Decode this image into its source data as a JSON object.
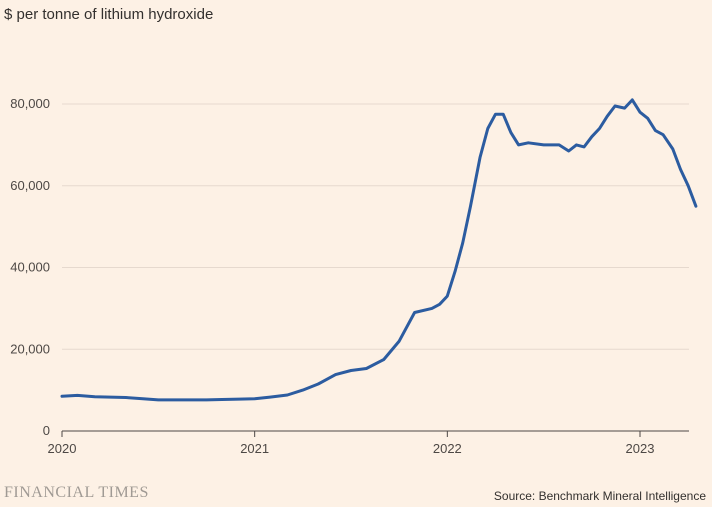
{
  "chart_data": {
    "type": "line",
    "title": "",
    "subtitle": "$ per tonne of lithium hydroxide",
    "xlabel": "",
    "ylabel": "",
    "xlim": [
      2020.0,
      2023.33
    ],
    "ylim": [
      0,
      80000
    ],
    "y_ticks": [
      0,
      20000,
      40000,
      60000,
      80000
    ],
    "y_tick_labels": [
      "0",
      "20,000",
      "40,000",
      "60,000",
      "80,000"
    ],
    "x_ticks": [
      2020,
      2021,
      2022,
      2023
    ],
    "x_tick_labels": [
      "2020",
      "2021",
      "2022",
      "2023"
    ],
    "grid": true,
    "series": [
      {
        "color": "#2c5ca0",
        "points": [
          [
            2020.0,
            8500
          ],
          [
            2020.08,
            8700
          ],
          [
            2020.17,
            8400
          ],
          [
            2020.25,
            8300
          ],
          [
            2020.33,
            8200
          ],
          [
            2020.42,
            7900
          ],
          [
            2020.5,
            7600
          ],
          [
            2020.58,
            7600
          ],
          [
            2020.67,
            7600
          ],
          [
            2020.75,
            7600
          ],
          [
            2020.83,
            7700
          ],
          [
            2020.92,
            7800
          ],
          [
            2021.0,
            7900
          ],
          [
            2021.08,
            8300
          ],
          [
            2021.17,
            8800
          ],
          [
            2021.25,
            10000
          ],
          [
            2021.33,
            11500
          ],
          [
            2021.42,
            13800
          ],
          [
            2021.5,
            14800
          ],
          [
            2021.58,
            15300
          ],
          [
            2021.67,
            17500
          ],
          [
            2021.75,
            22000
          ],
          [
            2021.83,
            29000
          ],
          [
            2021.92,
            30000
          ],
          [
            2021.96,
            31000
          ],
          [
            2022.0,
            33000
          ],
          [
            2022.04,
            39000
          ],
          [
            2022.08,
            46000
          ],
          [
            2022.12,
            55000
          ],
          [
            2022.17,
            67000
          ],
          [
            2022.21,
            74000
          ],
          [
            2022.25,
            77500
          ],
          [
            2022.29,
            77500
          ],
          [
            2022.33,
            73000
          ],
          [
            2022.37,
            70000
          ],
          [
            2022.42,
            70500
          ],
          [
            2022.5,
            70000
          ],
          [
            2022.58,
            70000
          ],
          [
            2022.63,
            68500
          ],
          [
            2022.67,
            70000
          ],
          [
            2022.71,
            69500
          ],
          [
            2022.75,
            72000
          ],
          [
            2022.79,
            74000
          ],
          [
            2022.83,
            77000
          ],
          [
            2022.87,
            79500
          ],
          [
            2022.92,
            79000
          ],
          [
            2022.96,
            81000
          ],
          [
            2023.0,
            78000
          ],
          [
            2023.04,
            76500
          ],
          [
            2023.08,
            73500
          ],
          [
            2023.12,
            72500
          ],
          [
            2023.17,
            69000
          ],
          [
            2023.21,
            64000
          ],
          [
            2023.25,
            60000
          ],
          [
            2023.29,
            55000
          ]
        ]
      }
    ]
  },
  "footer": {
    "brand": "FINANCIAL TIMES",
    "source": "Source: Benchmark Mineral Intelligence"
  }
}
